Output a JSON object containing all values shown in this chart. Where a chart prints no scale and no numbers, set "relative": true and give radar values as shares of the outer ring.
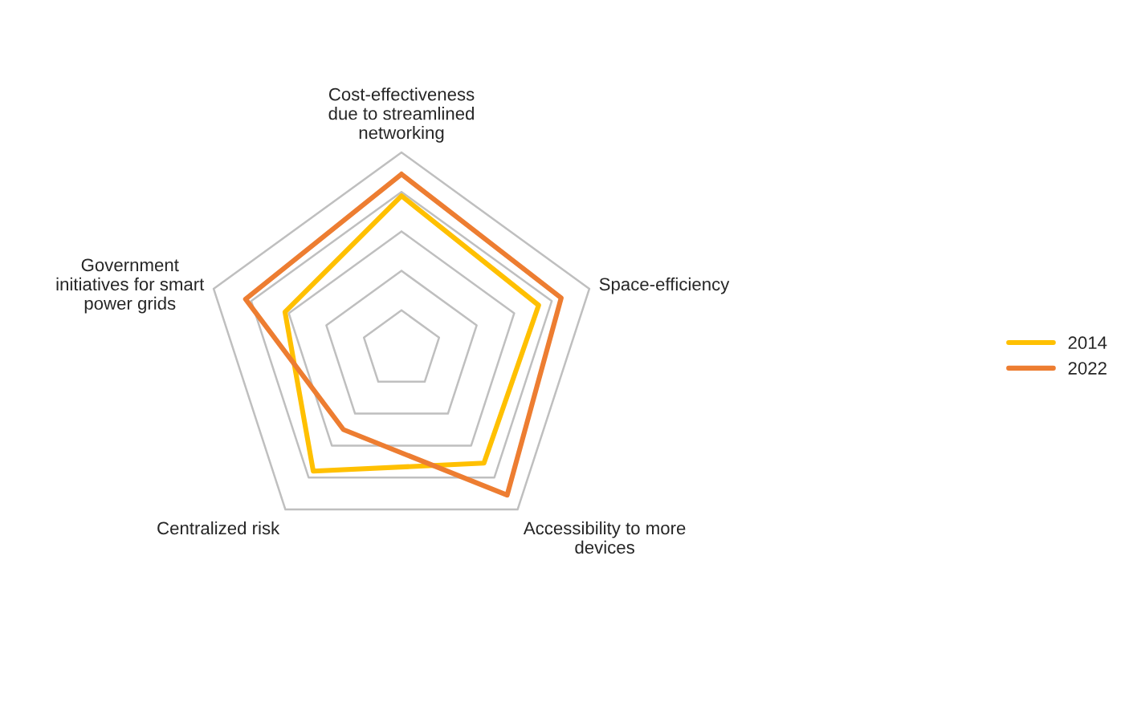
{
  "chart_data": {
    "type": "radar",
    "relative": true,
    "grid": true,
    "legend": "right",
    "categories": [
      "Cost-effectiveness\ndue to streamlined\nnetworking",
      "Space-efficiency",
      "Accessibility to more\ndevices",
      "Centralized risk",
      "Government\ninitiatives for smart\npower grids"
    ],
    "series": [
      {
        "name": "2014",
        "color": "#ffc000",
        "values": [
          0.78,
          0.73,
          0.71,
          0.76,
          0.62
        ]
      },
      {
        "name": "2022",
        "color": "#ed7d31",
        "values": [
          0.89,
          0.85,
          0.91,
          0.5,
          0.83
        ]
      }
    ]
  }
}
